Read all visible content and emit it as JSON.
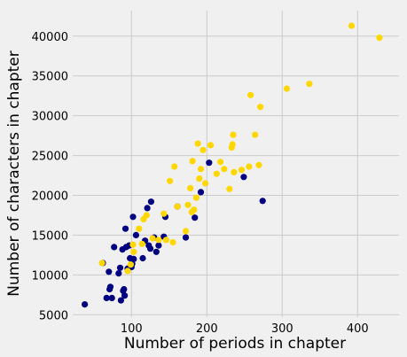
{
  "chart_data": {
    "type": "scatter",
    "title": "",
    "xlabel": "Number of periods in chapter",
    "ylabel": "Number of characters in chapter",
    "xlim": [
      22,
      455
    ],
    "ylim": [
      4700,
      43200
    ],
    "xticks": [
      100,
      200,
      300,
      400
    ],
    "yticks": [
      5000,
      10000,
      15000,
      20000,
      25000,
      30000,
      35000,
      40000
    ],
    "grid": true,
    "background": "#f0f0f0",
    "grid_color": "#cbcbcb",
    "series": [
      {
        "color": "#000080",
        "points": [
          [
            38,
            6300
          ],
          [
            62,
            11500
          ],
          [
            67,
            7100
          ],
          [
            70,
            10400
          ],
          [
            71,
            8200
          ],
          [
            72,
            8500
          ],
          [
            74,
            7100
          ],
          [
            77,
            13500
          ],
          [
            83,
            10200
          ],
          [
            85,
            10900
          ],
          [
            86,
            6800
          ],
          [
            88,
            13200
          ],
          [
            89,
            8000
          ],
          [
            90,
            8200
          ],
          [
            91,
            7400
          ],
          [
            92,
            15800
          ],
          [
            93,
            13500
          ],
          [
            95,
            10800
          ],
          [
            97,
            13700
          ],
          [
            98,
            12100
          ],
          [
            100,
            11000
          ],
          [
            101,
            11400
          ],
          [
            102,
            17300
          ],
          [
            103,
            12000
          ],
          [
            106,
            15000
          ],
          [
            115,
            12100
          ],
          [
            118,
            14300
          ],
          [
            121,
            18400
          ],
          [
            123,
            13700
          ],
          [
            125,
            13300
          ],
          [
            126,
            19200
          ],
          [
            130,
            14700
          ],
          [
            133,
            12900
          ],
          [
            136,
            13700
          ],
          [
            143,
            14800
          ],
          [
            145,
            17300
          ],
          [
            161,
            18600
          ],
          [
            172,
            14700
          ],
          [
            184,
            17200
          ],
          [
            192,
            20400
          ],
          [
            203,
            24100
          ],
          [
            249,
            22300
          ],
          [
            274,
            19300
          ]
        ]
      },
      {
        "color": "#ffd700",
        "points": [
          [
            61,
            11500
          ],
          [
            95,
            10500
          ],
          [
            99,
            11300
          ],
          [
            102,
            13800
          ],
          [
            103,
            12900
          ],
          [
            110,
            15800
          ],
          [
            114,
            13900
          ],
          [
            116,
            17000
          ],
          [
            120,
            17500
          ],
          [
            128,
            14600
          ],
          [
            136,
            14400
          ],
          [
            143,
            17700
          ],
          [
            146,
            14400
          ],
          [
            151,
            21800
          ],
          [
            155,
            14100
          ],
          [
            157,
            23600
          ],
          [
            161,
            18600
          ],
          [
            172,
            15500
          ],
          [
            175,
            18800
          ],
          [
            178,
            20900
          ],
          [
            180,
            17900
          ],
          [
            181,
            24300
          ],
          [
            183,
            18200
          ],
          [
            186,
            19700
          ],
          [
            188,
            26500
          ],
          [
            190,
            22100
          ],
          [
            192,
            23300
          ],
          [
            195,
            25700
          ],
          [
            198,
            21500
          ],
          [
            205,
            26300
          ],
          [
            213,
            22700
          ],
          [
            218,
            24200
          ],
          [
            223,
            23300
          ],
          [
            230,
            20800
          ],
          [
            233,
            26000
          ],
          [
            234,
            26400
          ],
          [
            235,
            27600
          ],
          [
            236,
            22900
          ],
          [
            246,
            23200
          ],
          [
            256,
            23600
          ],
          [
            258,
            32600
          ],
          [
            264,
            27600
          ],
          [
            269,
            23800
          ],
          [
            271,
            31100
          ],
          [
            306,
            33400
          ],
          [
            336,
            34000
          ],
          [
            392,
            41300
          ],
          [
            429,
            39800
          ]
        ]
      }
    ]
  }
}
